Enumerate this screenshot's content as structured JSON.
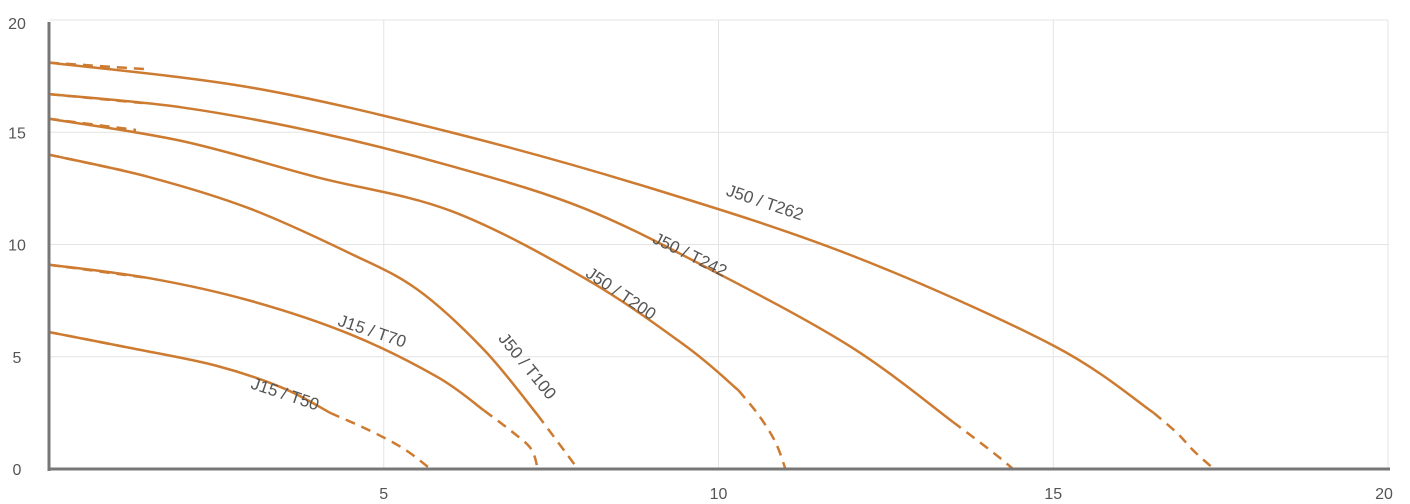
{
  "chart_data": {
    "type": "line",
    "title": "",
    "xlabel": "",
    "ylabel": "",
    "xlim": [
      0,
      20
    ],
    "ylim": [
      0,
      20
    ],
    "x_ticks": [
      "5",
      "10",
      "15",
      "20"
    ],
    "y_ticks": [
      "0",
      "5",
      "10",
      "15",
      "20"
    ],
    "grid": true,
    "legend": "none",
    "line_color": "#cd7b31",
    "series": [
      {
        "name": "J15 / T50",
        "label_at": [
          3.0,
          3.6
        ],
        "solid": [
          [
            0.0,
            6.1
          ],
          [
            1.2,
            5.4
          ],
          [
            2.5,
            4.6
          ],
          [
            3.5,
            3.6
          ],
          [
            4.2,
            2.5
          ]
        ],
        "dashed_start": [
          [
            0.0,
            6.1
          ],
          [
            1.2,
            5.4
          ]
        ],
        "dashed_end": [
          [
            4.2,
            2.5
          ],
          [
            4.8,
            1.7
          ],
          [
            5.3,
            0.9
          ],
          [
            5.7,
            0.0
          ]
        ]
      },
      {
        "name": "J15 / T70",
        "label_at": [
          4.3,
          6.4
        ],
        "solid": [
          [
            0.0,
            9.1
          ],
          [
            1.5,
            8.5
          ],
          [
            3.0,
            7.5
          ],
          [
            4.5,
            6.0
          ],
          [
            5.8,
            4.1
          ],
          [
            6.5,
            2.6
          ]
        ],
        "dashed_start": [
          [
            0.0,
            9.1
          ],
          [
            1.5,
            8.5
          ]
        ],
        "dashed_end": [
          [
            6.5,
            2.6
          ],
          [
            6.9,
            1.7
          ],
          [
            7.2,
            0.9
          ],
          [
            7.3,
            0.0
          ]
        ]
      },
      {
        "name": "J50 / T100",
        "label_at": [
          6.7,
          5.8
        ],
        "solid": [
          [
            0.0,
            14.0
          ],
          [
            1.5,
            13.0
          ],
          [
            3.0,
            11.6
          ],
          [
            4.5,
            9.6
          ],
          [
            5.5,
            8.0
          ],
          [
            6.5,
            5.3
          ],
          [
            7.3,
            2.4
          ]
        ],
        "dashed_start": [
          [
            0.0,
            14.0
          ],
          [
            1.1,
            13.3
          ]
        ],
        "dashed_end": [
          [
            7.3,
            2.4
          ],
          [
            7.55,
            1.4
          ],
          [
            7.75,
            0.6
          ],
          [
            7.9,
            0.0
          ]
        ]
      },
      {
        "name": "J50 / T200",
        "label_at": [
          8.0,
          8.6
        ],
        "solid": [
          [
            0.0,
            15.6
          ],
          [
            2.0,
            14.6
          ],
          [
            4.0,
            13.0
          ],
          [
            6.0,
            11.5
          ],
          [
            8.0,
            8.5
          ],
          [
            9.5,
            5.5
          ],
          [
            10.3,
            3.5
          ]
        ],
        "dashed_start": [
          [
            0.0,
            15.6
          ],
          [
            1.3,
            15.1
          ]
        ],
        "dashed_end": [
          [
            10.3,
            3.5
          ],
          [
            10.6,
            2.4
          ],
          [
            10.85,
            1.2
          ],
          [
            11.0,
            0.0
          ]
        ]
      },
      {
        "name": "J50 / T242",
        "label_at": [
          9.0,
          10.1
        ],
        "solid": [
          [
            0.0,
            16.7
          ],
          [
            2.0,
            16.1
          ],
          [
            4.0,
            15.0
          ],
          [
            6.0,
            13.5
          ],
          [
            8.0,
            11.6
          ],
          [
            10.0,
            8.7
          ],
          [
            12.0,
            5.4
          ],
          [
            13.5,
            2.1
          ]
        ],
        "dashed_start": [
          [
            0.0,
            16.7
          ],
          [
            1.4,
            16.3
          ]
        ],
        "dashed_end": [
          [
            13.5,
            2.1
          ],
          [
            13.9,
            1.2
          ],
          [
            14.2,
            0.5
          ],
          [
            14.4,
            0.0
          ]
        ]
      },
      {
        "name": "J50 / T262",
        "label_at": [
          10.1,
          12.2
        ],
        "solid": [
          [
            0.0,
            18.1
          ],
          [
            3.0,
            17.0
          ],
          [
            6.0,
            15.0
          ],
          [
            9.0,
            12.5
          ],
          [
            12.0,
            9.5
          ],
          [
            15.0,
            5.5
          ],
          [
            16.5,
            2.5
          ]
        ],
        "dashed_start": [
          [
            0.0,
            18.1
          ],
          [
            1.5,
            17.8
          ]
        ],
        "dashed_end": [
          [
            16.5,
            2.5
          ],
          [
            16.85,
            1.6
          ],
          [
            17.1,
            0.8
          ],
          [
            17.4,
            0.0
          ]
        ]
      }
    ]
  }
}
